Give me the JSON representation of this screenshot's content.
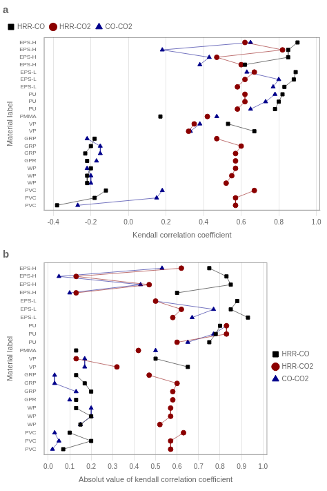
{
  "chart_data": [
    {
      "type": "scatter",
      "orientation": "horizontal",
      "title": "a",
      "xlabel": "Kendall correlation coefficient",
      "ylabel": "Material label",
      "categories": [
        "EPS-H",
        "EPS-H",
        "EPS-H",
        "EPS-H",
        "EPS-L",
        "EPS-L",
        "EPS-L",
        "PU",
        "PU",
        "PU",
        "PMMA",
        "VP",
        "VP",
        "GRP",
        "GRP",
        "GRP",
        "GPR",
        "WP",
        "WP",
        "WP",
        "PVC",
        "PVC",
        "PVC"
      ],
      "series": [
        {
          "name": "HRR-CO",
          "color": "#000000",
          "marker": "square",
          "line_style": "solid",
          "values": [
            0.9,
            0.85,
            0.85,
            0.62,
            0.89,
            0.88,
            0.83,
            0.82,
            0.8,
            0.78,
            0.17,
            0.53,
            0.67,
            -0.18,
            -0.2,
            -0.23,
            -0.22,
            -0.2,
            -0.22,
            -0.22,
            -0.12,
            -0.18,
            -0.38
          ]
        },
        {
          "name": "HRR-CO2",
          "color": "#8B0000",
          "marker": "circle",
          "line_style": "solid",
          "values": [
            0.62,
            0.82,
            0.47,
            0.6,
            0.67,
            0.62,
            0.58,
            0.62,
            0.62,
            0.58,
            0.42,
            0.35,
            0.32,
            0.47,
            0.6,
            0.57,
            0.57,
            0.57,
            0.55,
            0.52,
            0.67,
            0.57,
            0.57
          ]
        },
        {
          "name": "CO-CO2",
          "color": "#00008B",
          "marker": "triangle",
          "line_style": "solid",
          "values": [
            0.65,
            0.18,
            0.43,
            0.38,
            0.63,
            0.8,
            0.77,
            0.78,
            0.73,
            0.65,
            0.47,
            0.38,
            0.33,
            -0.22,
            -0.15,
            -0.15,
            -0.17,
            -0.22,
            -0.2,
            -0.2,
            0.18,
            0.15,
            -0.27
          ]
        }
      ],
      "xlim": [
        -0.45,
        1.02
      ],
      "xticks": [
        -0.4,
        -0.2,
        {
          "value": 0.0,
          "label": "0.0"
        },
        0.2,
        0.4,
        0.6,
        0.8,
        {
          "value": 1.0,
          "label": "1.0"
        }
      ],
      "grid": "x",
      "legend": "upper left"
    },
    {
      "type": "scatter",
      "orientation": "horizontal",
      "title": "b",
      "xlabel": "Absolut value of kendall correlation coefficient",
      "ylabel": "Material label",
      "categories": [
        "EPS-H",
        "EPS-H",
        "EPS-H",
        "EPS-H",
        "EPS-L",
        "EPS-L",
        "EPS-L",
        "PU",
        "PU",
        "PU",
        "PMMA",
        "VP",
        "VP",
        "GRP",
        "GRP",
        "GRP",
        "GPR",
        "WP",
        "WP",
        "WP",
        "PVC",
        "PVC",
        "PVC"
      ],
      "series": [
        {
          "name": "HRR-CO",
          "color": "#000000",
          "marker": "square",
          "line_style": "solid",
          "values": [
            0.75,
            0.83,
            0.85,
            0.6,
            0.88,
            0.85,
            0.93,
            0.8,
            0.78,
            0.75,
            0.13,
            0.5,
            0.65,
            0.13,
            0.17,
            0.2,
            0.13,
            0.13,
            0.2,
            0.15,
            0.1,
            0.2,
            0.07
          ]
        },
        {
          "name": "HRR-CO2",
          "color": "#8B0000",
          "marker": "circle",
          "line_style": "solid",
          "values": [
            0.62,
            0.13,
            0.47,
            0.13,
            0.5,
            0.62,
            0.58,
            0.83,
            0.83,
            0.6,
            0.42,
            0.13,
            0.32,
            0.47,
            0.6,
            0.58,
            0.58,
            0.57,
            0.57,
            0.52,
            0.63,
            0.57,
            0.57
          ]
        },
        {
          "name": "CO-CO2",
          "color": "#00008B",
          "marker": "triangle",
          "line_style": "solid",
          "values": [
            0.53,
            0.05,
            0.43,
            0.1,
            0.5,
            0.77,
            0.67,
            0.83,
            0.77,
            0.65,
            0.5,
            0.17,
            0.17,
            0.03,
            0.03,
            0.13,
            0.1,
            0.2,
            0.2,
            0.15,
            0.03,
            0.05,
            0.02
          ]
        }
      ],
      "xlim": [
        -0.02,
        1.02
      ],
      "xticks": [
        {
          "value": 0.0,
          "label": "0.0"
        },
        0.1,
        0.2,
        0.3,
        0.4,
        0.5,
        0.6,
        0.7,
        0.8,
        0.9,
        {
          "value": 1.0,
          "label": "1.0"
        }
      ],
      "grid": "x",
      "legend": "center right"
    }
  ]
}
